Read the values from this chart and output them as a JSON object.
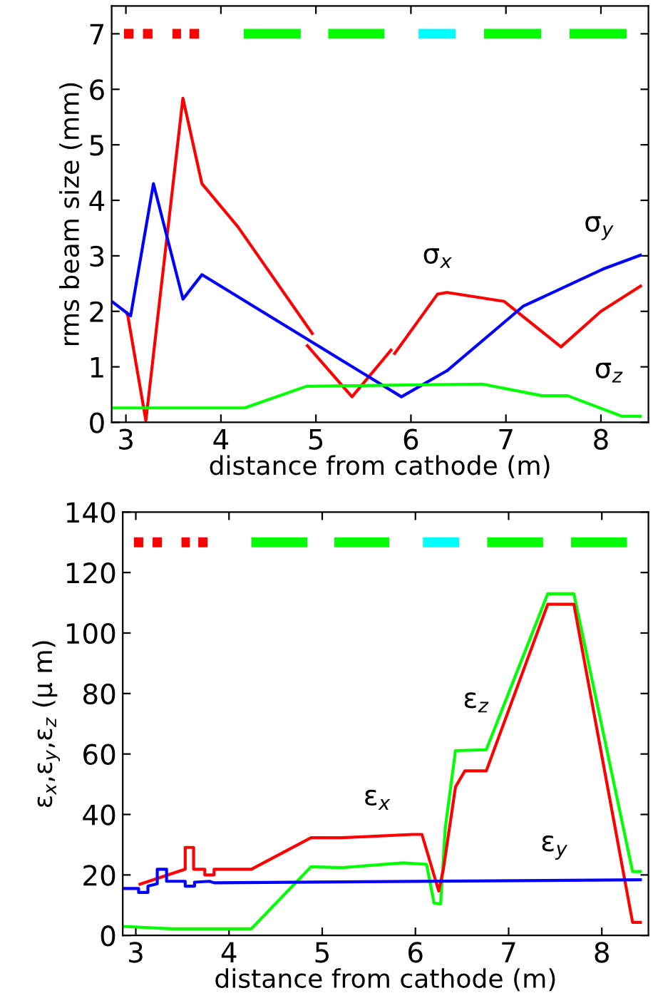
{
  "chart_data": [
    {
      "type": "line",
      "xlabel": "distance from cathode (m)",
      "ylabel": "rms beam size (mm)",
      "xlim": [
        2.85,
        8.5
      ],
      "ylim": [
        0,
        7.5
      ],
      "xticks": [
        3,
        4,
        5,
        6,
        7,
        8
      ],
      "yticks": [
        0,
        1,
        2,
        3,
        4,
        5,
        6,
        7
      ],
      "grid": false,
      "legend": false,
      "line_style": "solid",
      "series": [
        {
          "name": "σ$_{x}$",
          "color": "#ff0000",
          "x": [
            3.0,
            3.02,
            3.21,
            3.6,
            3.8,
            4.18,
            4.97,
            null,
            4.9,
            5.38,
            5.8,
            null,
            5.82,
            6.28,
            6.38,
            6.98,
            7.58,
            8.0,
            8.43
          ],
          "values": [
            2.0,
            1.92,
            0.03,
            5.84,
            4.3,
            3.52,
            1.58,
            null,
            1.4,
            0.46,
            1.32,
            null,
            1.22,
            2.31,
            2.34,
            2.18,
            1.36,
            2.0,
            2.47
          ]
        },
        {
          "name": "σ$_{y}$",
          "color": "#0000ff",
          "x": [
            2.85,
            3.05,
            3.29,
            3.6,
            3.8,
            5.9,
            6.38,
            7.18,
            8.02,
            8.43
          ],
          "values": [
            2.18,
            1.92,
            4.3,
            2.22,
            2.66,
            0.46,
            0.93,
            2.09,
            2.76,
            3.02
          ]
        },
        {
          "name": "σ$_{z}$",
          "color": "#00ff00",
          "x": [
            2.85,
            4.25,
            4.9,
            6.75,
            7.38,
            7.65,
            8.22,
            8.43
          ],
          "values": [
            0.26,
            0.26,
            0.65,
            0.69,
            0.48,
            0.48,
            0.11,
            0.11
          ]
        },
        {
          "color": "#ff0000",
          "x": [
            2.98,
            3.08,
            null,
            3.18,
            3.28,
            null,
            3.49,
            3.58,
            null,
            3.67,
            3.77
          ],
          "values": [
            7,
            7,
            null,
            7,
            7,
            null,
            7,
            7,
            null,
            7,
            7
          ]
        },
        {
          "color": "#00ff00",
          "x": [
            4.24,
            4.84,
            null,
            5.13,
            5.72,
            null,
            6.77,
            7.37,
            null,
            7.67,
            8.27
          ],
          "values": [
            7,
            7,
            null,
            7,
            7,
            null,
            7,
            7,
            null,
            7,
            7
          ]
        },
        {
          "color": "#00ffff",
          "x": [
            6.08,
            6.47
          ],
          "values": [
            7,
            7
          ]
        }
      ]
    },
    {
      "type": "line",
      "xlabel": "distance from cathode (m)",
      "ylabel": "ε$_{x}$,ε$_{y}$,ε$_{z}$ (μ m)",
      "xlim": [
        2.86,
        8.5
      ],
      "ylim": [
        0,
        140
      ],
      "xticks": [
        3,
        4,
        5,
        6,
        7,
        8
      ],
      "yticks": [
        0,
        20,
        40,
        60,
        80,
        100,
        120,
        140
      ],
      "grid": false,
      "legend": false,
      "line_style": "solid",
      "series": [
        {
          "name": "ε$_{z}$",
          "color": "#00ff00",
          "x": [
            2.86,
            3.38,
            4.24,
            4.88,
            5.21,
            5.87,
            6.12,
            6.2,
            6.27,
            6.32,
            6.43,
            6.76,
            7.42,
            7.7,
            8.33,
            8.43
          ],
          "values": [
            3,
            2.2,
            2.2,
            22.7,
            22.4,
            24,
            23.5,
            10.7,
            10.4,
            35.5,
            61.1,
            61.4,
            113,
            113,
            21.1,
            21.1
          ]
        },
        {
          "name": "ε$_{x}$",
          "color": "#ff0000",
          "x": [
            3.03,
            3.53,
            3.53,
            3.62,
            3.62,
            3.74,
            3.74,
            3.84,
            3.84,
            4.24,
            4.88,
            5.21,
            5.97,
            6.07,
            6.25,
            6.3,
            6.43,
            6.53,
            6.76,
            7.42,
            7.7,
            8.33,
            8.43
          ],
          "values": [
            16.8,
            21.9,
            29.1,
            29.1,
            21.9,
            21.9,
            20,
            20,
            21.9,
            21.9,
            32.3,
            32.3,
            33.4,
            33.4,
            14.7,
            21.9,
            49.1,
            54.4,
            54.4,
            109.5,
            109.5,
            4.3,
            4.3
          ]
        },
        {
          "name": "ε$_{y}$",
          "color": "#0000ff",
          "x": [
            2.86,
            3.03,
            3.03,
            3.13,
            3.13,
            3.23,
            3.23,
            3.33,
            3.33,
            3.53,
            3.53,
            3.63,
            3.63,
            3.79,
            3.84,
            8.43
          ],
          "values": [
            15.5,
            15.5,
            14.2,
            14.2,
            16.3,
            17.1,
            21.9,
            21.9,
            17.9,
            17.9,
            16.3,
            16.3,
            17.6,
            17.9,
            17.4,
            18.4
          ]
        },
        {
          "color": "#ff0000",
          "x": [
            2.98,
            3.08,
            null,
            3.18,
            3.28,
            null,
            3.49,
            3.58,
            null,
            3.67,
            3.77
          ],
          "values": [
            130,
            130,
            null,
            130,
            130,
            null,
            130,
            130,
            null,
            130,
            130
          ]
        },
        {
          "color": "#00ff00",
          "x": [
            4.24,
            4.84,
            null,
            5.13,
            5.72,
            null,
            6.77,
            7.37,
            null,
            7.67,
            8.27
          ],
          "values": [
            130,
            130,
            null,
            130,
            130,
            null,
            130,
            130,
            null,
            130,
            130
          ]
        },
        {
          "color": "#00ffff",
          "x": [
            6.08,
            6.47
          ],
          "values": [
            130,
            130
          ]
        }
      ]
    }
  ]
}
